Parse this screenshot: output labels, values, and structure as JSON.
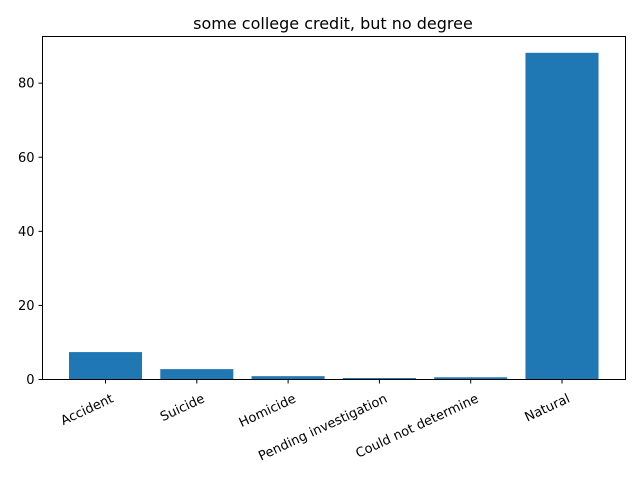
{
  "chart_data": {
    "type": "bar",
    "title": "some college credit, but no degree",
    "xlabel": "",
    "ylabel": "",
    "categories": [
      "Accident",
      "Suicide",
      "Homicide",
      "Pending investigation",
      "Could not determine",
      "Natural"
    ],
    "values": [
      7.4,
      2.8,
      0.9,
      0.4,
      0.6,
      88.2
    ],
    "ylim": [
      0,
      92.6
    ],
    "yticks": [
      0,
      20,
      40,
      60,
      80
    ],
    "grid": false,
    "legend": "none",
    "bar_color": "#1f77b4"
  }
}
